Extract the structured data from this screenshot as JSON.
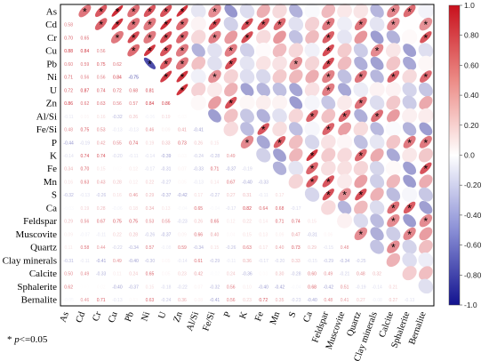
{
  "chart_data": {
    "type": "heatmap",
    "variant": "correlation-ellipse-matrix",
    "variables": [
      "As",
      "Cd",
      "Cr",
      "Cu",
      "Pb",
      "Ni",
      "U",
      "Zn",
      "Al/Si",
      "Fe/Si",
      "P",
      "K",
      "Fe",
      "Mn",
      "S",
      "Ca",
      "Feldspar",
      "Muscovite",
      "Quartz",
      "Clay minerals",
      "Calcite",
      "Sphalerite",
      "Bernalite"
    ],
    "lower_triangle": "numeric correlation coefficients (labels mostly too small to read)",
    "upper_triangle": "ellipses colored by correlation value",
    "colorbar": {
      "ticks": [
        "1.0",
        "0.80",
        "0.60",
        "0.40",
        "0.20",
        "0.0",
        "-0.20",
        "-0.40",
        "-0.60",
        "-0.80",
        "-1.0"
      ],
      "range": [
        -1,
        1
      ],
      "high_color": "#d7191c",
      "mid_color": "#ffffff",
      "low_color": "#1a1aa6"
    },
    "readable_values": [
      {
        "row": "Cu",
        "col": "As",
        "value": "0.88"
      },
      {
        "row": "Cu",
        "col": "Cd",
        "value": "0.84"
      },
      {
        "row": "Pb",
        "col": "Cr",
        "value": "0.75"
      },
      {
        "row": "Ni",
        "col": "Pb",
        "value": "-0.75"
      },
      {
        "row": "Ni",
        "col": "As",
        "value": "0.71"
      },
      {
        "row": "U",
        "col": "As",
        "value": "0.72"
      },
      {
        "row": "U",
        "col": "Cu",
        "value": "0.72"
      },
      {
        "row": "Zn",
        "col": "As",
        "value": "0.86"
      },
      {
        "row": "Zn",
        "col": "Ni",
        "value": "0.84"
      },
      {
        "row": "K",
        "col": "Cd",
        "value": "0.74"
      },
      {
        "row": "Fe",
        "col": "Fe/Si",
        "value": "0.71"
      },
      {
        "row": "Ca",
        "col": "K",
        "value": "0.82"
      }
    ],
    "significance_marker": "*"
  },
  "footnote": {
    "star": "*",
    "p": "p",
    "rest": "<=0.05"
  }
}
